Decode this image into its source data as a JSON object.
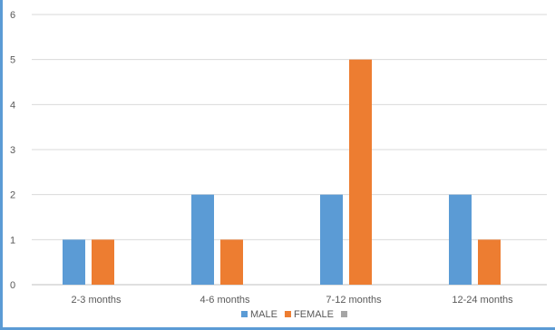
{
  "chart_data": {
    "type": "bar",
    "categories": [
      "2-3 months",
      "4-6 months",
      "7-12 months",
      "12-24 months"
    ],
    "series": [
      {
        "name": "MALE",
        "values": [
          1,
          2,
          2,
          2
        ],
        "color": "#5b9bd5"
      },
      {
        "name": "FEMALE",
        "values": [
          1,
          1,
          5,
          1
        ],
        "color": "#ed7d31"
      },
      {
        "name": "",
        "values": [
          0,
          0,
          0,
          0
        ],
        "color": "#a5a5a5"
      }
    ],
    "ylim": [
      0,
      6
    ],
    "yticks": [
      "0",
      "1",
      "2",
      "3",
      "4",
      "5",
      "6"
    ],
    "grid": true,
    "legend": "bottom",
    "title": "",
    "xlabel": "",
    "ylabel": ""
  }
}
